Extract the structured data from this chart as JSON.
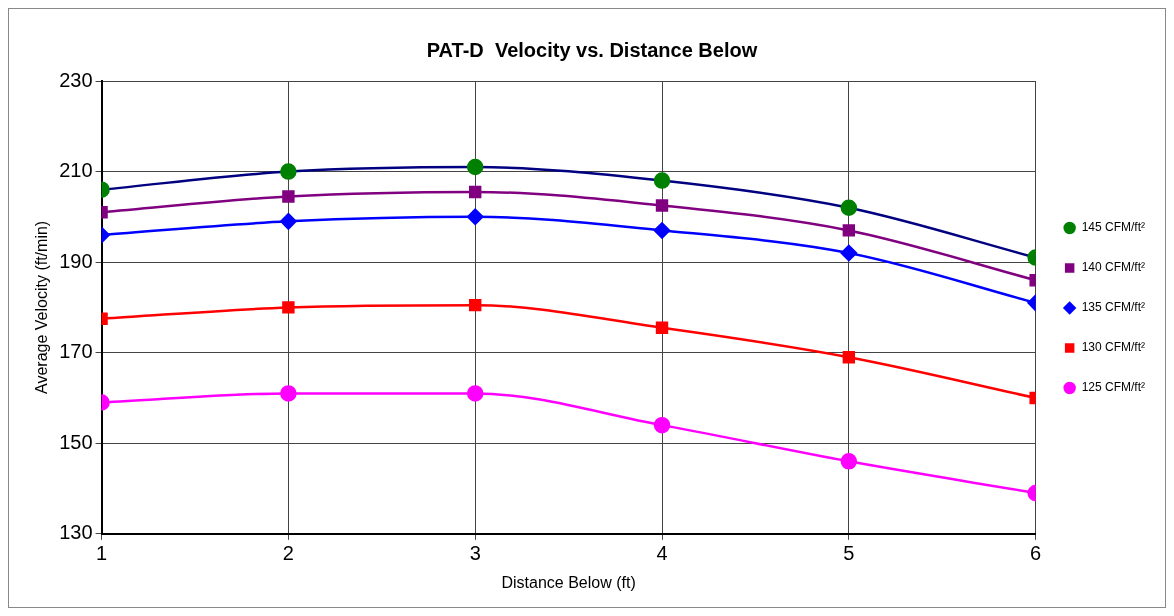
{
  "chart_data": {
    "type": "line",
    "title": "PAT-D  Velocity vs. Distance Below",
    "xlabel": "Distance Below (ft)",
    "ylabel": "Average Velocity (ft/min)",
    "x": [
      1,
      2,
      3,
      4,
      5,
      6
    ],
    "xlim": [
      1,
      6
    ],
    "xticks": [
      1,
      2,
      3,
      4,
      5,
      6
    ],
    "ylim": [
      130,
      230
    ],
    "yticks": [
      130,
      150,
      170,
      190,
      210,
      230
    ],
    "grid": true,
    "legend": "right",
    "series": [
      {
        "name": "145 CFM/ft²",
        "color": "#000080",
        "colors": [
          "#008000",
          "#008000",
          "#008000",
          "#008000",
          "#008000",
          "#008000"
        ],
        "marker": "circle",
        "values": [
          206,
          210,
          211,
          208,
          202,
          191
        ]
      },
      {
        "name": "140 CFM/ft²",
        "color": "#800080",
        "marker": "square",
        "values": [
          201,
          204.5,
          205.5,
          202.5,
          197,
          186
        ]
      },
      {
        "name": "135 CFM/ft²",
        "color": "#0000ff",
        "marker": "diamond",
        "values": [
          196,
          199,
          200,
          197,
          192,
          181
        ]
      },
      {
        "name": "130 CFM/ft²",
        "color": "#ff0000",
        "marker": "square",
        "values": [
          177.5,
          180,
          180.5,
          175.5,
          169,
          160
        ]
      },
      {
        "name": "125 CFM/ft²",
        "color": "#ff00ff",
        "marker": "circle",
        "values": [
          159,
          161,
          161,
          154,
          146,
          139
        ]
      }
    ]
  }
}
